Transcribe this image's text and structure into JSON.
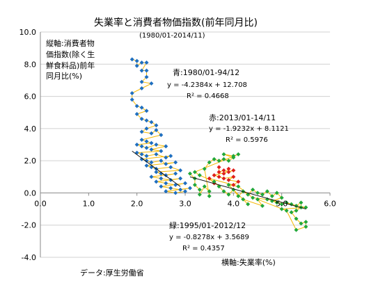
{
  "chart_data": {
    "type": "scatter",
    "title": "失業率と消費者物価指数(前年同月比)",
    "subtitle": "(1980/01-2014/11)",
    "ylabel_lines": [
      "縦軸:消費者物",
      "価指数(除く生",
      "鮮食料品)前年",
      "同月比(%)"
    ],
    "xlabel": "横軸:失業率(%)",
    "source": "データ:厚生労働省",
    "xlim": [
      0,
      6
    ],
    "ylim": [
      -4,
      10
    ],
    "x_ticks": [
      "0.0",
      "1.0",
      "2.0",
      "3.0",
      "4.0",
      "5.0",
      "6.0"
    ],
    "y_ticks": [
      "10.0",
      "8.0",
      "6.0",
      "4.0",
      "2.0",
      "0.0",
      "-2.0",
      "-4.0"
    ],
    "connector_color": "#f5b800",
    "series": [
      {
        "name": "青:1980/01-94/12",
        "color": "#1f6fc0",
        "equation": "y = -4.2384x + 12.708",
        "r2": "R² = 0.4668",
        "trend": [
          1.9,
          2.6,
          2.9,
          0.4
        ],
        "points": [
          [
            1.9,
            8.3
          ],
          [
            2.0,
            8.2
          ],
          [
            2.0,
            7.9
          ],
          [
            2.1,
            8.1
          ],
          [
            2.2,
            8.1
          ],
          [
            2.1,
            7.6
          ],
          [
            2.2,
            7.6
          ],
          [
            2.2,
            7.2
          ],
          [
            2.1,
            6.9
          ],
          [
            2.3,
            6.8
          ],
          [
            2.1,
            6.5
          ],
          [
            1.9,
            6.2
          ],
          [
            1.9,
            5.8
          ],
          [
            2.0,
            5.4
          ],
          [
            2.1,
            5.3
          ],
          [
            2.2,
            5.1
          ],
          [
            2.0,
            4.9
          ],
          [
            2.1,
            4.6
          ],
          [
            2.2,
            4.5
          ],
          [
            2.3,
            4.4
          ],
          [
            2.4,
            4.2
          ],
          [
            2.2,
            4.0
          ],
          [
            2.1,
            3.8
          ],
          [
            2.3,
            3.7
          ],
          [
            2.4,
            3.9
          ],
          [
            2.5,
            3.6
          ],
          [
            2.1,
            3.3
          ],
          [
            2.2,
            3.2
          ],
          [
            2.3,
            3.1
          ],
          [
            2.0,
            3.0
          ],
          [
            2.1,
            2.9
          ],
          [
            2.2,
            2.8
          ],
          [
            2.4,
            3.0
          ],
          [
            2.6,
            2.9
          ],
          [
            2.3,
            2.7
          ],
          [
            2.5,
            2.6
          ],
          [
            2.0,
            2.5
          ],
          [
            2.1,
            2.4
          ],
          [
            2.2,
            2.3
          ],
          [
            2.4,
            2.4
          ],
          [
            2.6,
            2.2
          ],
          [
            2.7,
            2.3
          ],
          [
            2.1,
            2.1
          ],
          [
            2.2,
            2.0
          ],
          [
            2.3,
            1.9
          ],
          [
            2.5,
            2.0
          ],
          [
            2.6,
            1.8
          ],
          [
            2.8,
            1.9
          ],
          [
            2.2,
            1.7
          ],
          [
            2.3,
            1.6
          ],
          [
            2.4,
            1.5
          ],
          [
            2.7,
            1.6
          ],
          [
            2.9,
            1.4
          ],
          [
            2.4,
            1.3
          ],
          [
            2.5,
            1.2
          ],
          [
            2.6,
            1.1
          ],
          [
            2.8,
            1.2
          ],
          [
            2.3,
            1.0
          ],
          [
            2.5,
            0.9
          ],
          [
            2.7,
            0.8
          ],
          [
            2.9,
            0.9
          ],
          [
            2.4,
            0.7
          ],
          [
            2.6,
            0.6
          ],
          [
            2.8,
            0.5
          ],
          [
            3.0,
            0.6
          ],
          [
            2.5,
            0.4
          ],
          [
            2.7,
            0.3
          ],
          [
            2.9,
            0.2
          ],
          [
            3.1,
            0.3
          ],
          [
            2.6,
            0.1
          ],
          [
            2.8,
            0.0
          ],
          [
            3.0,
            0.1
          ]
        ]
      },
      {
        "name": "赤:2013/01-14/11",
        "color": "#e0201b",
        "equation": "y = -1.9232x + 8.1121",
        "r2": "R² = 0.5976",
        "trend": [],
        "points": [
          [
            3.7,
            1.6
          ],
          [
            3.7,
            1.3
          ],
          [
            3.8,
            1.4
          ],
          [
            3.8,
            1.2
          ],
          [
            3.9,
            1.5
          ],
          [
            3.9,
            1.3
          ],
          [
            4.0,
            1.4
          ],
          [
            3.6,
            1.1
          ],
          [
            3.7,
            1.0
          ],
          [
            3.8,
            0.9
          ],
          [
            4.0,
            1.0
          ],
          [
            3.9,
            0.8
          ],
          [
            4.1,
            0.7
          ],
          [
            4.0,
            0.5
          ],
          [
            3.5,
            0.9
          ],
          [
            3.6,
            0.6
          ]
        ]
      },
      {
        "name": "緑:1995/01-2012/12",
        "color": "#22a83a",
        "equation": "y = -0.8278x + 3.5689",
        "r2": "R² = 0.4357",
        "trend": [
          3.1,
          1.0,
          5.5,
          -1.0
        ],
        "points": [
          [
            3.1,
            1.2
          ],
          [
            3.2,
            0.9
          ],
          [
            3.2,
            0.5
          ],
          [
            3.3,
            0.2
          ],
          [
            3.3,
            -0.1
          ],
          [
            3.4,
            0.4
          ],
          [
            3.5,
            0.1
          ],
          [
            3.5,
            -0.2
          ],
          [
            3.4,
            1.5
          ],
          [
            3.5,
            1.9
          ],
          [
            3.6,
            2.1
          ],
          [
            3.7,
            2.0
          ],
          [
            3.8,
            2.1
          ],
          [
            3.9,
            2.0
          ],
          [
            4.0,
            2.2
          ],
          [
            3.8,
            2.4
          ],
          [
            4.0,
            2.3
          ],
          [
            4.1,
            2.4
          ],
          [
            3.2,
            1.3
          ],
          [
            3.3,
            1.1
          ],
          [
            3.6,
            0.7
          ],
          [
            3.7,
            0.4
          ],
          [
            3.8,
            0.1
          ],
          [
            3.9,
            -0.1
          ],
          [
            4.0,
            0.2
          ],
          [
            4.1,
            -0.2
          ],
          [
            4.2,
            0.1
          ],
          [
            4.3,
            -0.1
          ],
          [
            4.4,
            0.2
          ],
          [
            4.5,
            0.0
          ],
          [
            4.6,
            -0.1
          ],
          [
            4.7,
            0.1
          ],
          [
            4.8,
            -0.2
          ],
          [
            4.9,
            0.0
          ],
          [
            5.0,
            -0.3
          ],
          [
            4.8,
            -0.5
          ],
          [
            4.9,
            -0.6
          ],
          [
            5.0,
            -0.7
          ],
          [
            5.1,
            -0.6
          ],
          [
            5.2,
            -0.7
          ],
          [
            5.3,
            -0.8
          ],
          [
            5.4,
            -0.6
          ],
          [
            5.4,
            -0.9
          ],
          [
            5.3,
            -1.1
          ],
          [
            5.2,
            -1.2
          ],
          [
            5.3,
            -1.6
          ],
          [
            5.4,
            -1.9
          ],
          [
            5.5,
            -1.8
          ],
          [
            5.5,
            -2.1
          ],
          [
            5.3,
            -2.3
          ],
          [
            5.1,
            -1.1
          ],
          [
            4.5,
            -0.4
          ],
          [
            4.6,
            -0.8
          ],
          [
            4.2,
            -0.4
          ],
          [
            4.3,
            -0.7
          ],
          [
            3.9,
            0.5
          ],
          [
            4.1,
            0.4
          ],
          [
            4.4,
            -0.3
          ],
          [
            4.7,
            -0.4
          ],
          [
            5.5,
            -0.9
          ],
          [
            5.0,
            -1.0
          ]
        ]
      }
    ]
  }
}
